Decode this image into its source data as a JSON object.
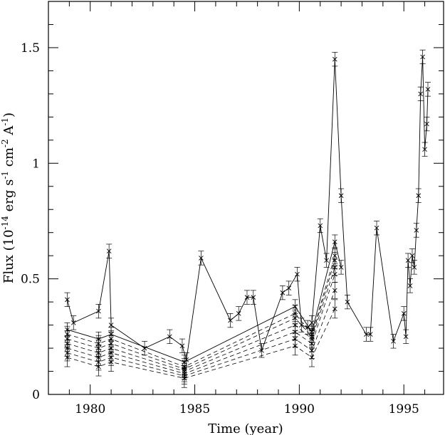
{
  "chart_data": {
    "type": "line",
    "title": "",
    "xlabel": "Time (year)",
    "ylabel": {
      "base": "Flux (10",
      "exp1": "-14",
      "mid1": " erg s",
      "exp2": "-1",
      "mid2": " cm",
      "exp3": "-2",
      "mid3": " A",
      "exp4": "-1",
      "end": ")"
    },
    "xlim": [
      1978,
      1996.9
    ],
    "ylim": [
      0,
      1.7
    ],
    "x_ticks": [
      {
        "value": 1980,
        "label": "1980"
      },
      {
        "value": 1985,
        "label": "1985"
      },
      {
        "value": 1990,
        "label": "1990"
      },
      {
        "value": 1995,
        "label": "1995"
      }
    ],
    "y_ticks": [
      {
        "value": 0,
        "label": "0"
      },
      {
        "value": 0.5,
        "label": "0.5"
      },
      {
        "value": 1,
        "label": "1"
      },
      {
        "value": 1.5,
        "label": "1.5"
      }
    ],
    "grid": false,
    "legend": "none",
    "marker": "x",
    "error_bars": true,
    "series": [
      {
        "style": "solid",
        "error": 0.03,
        "x": [
          1978.9,
          1979.2,
          1980.4,
          1980.9,
          1981.0,
          1982.6,
          1983.8,
          1984.4,
          1984.6,
          1985.3,
          1986.7,
          1987.1,
          1987.5,
          1987.8,
          1988.2,
          1989.2,
          1989.5,
          1989.9,
          1990.1,
          1990.4,
          1990.6,
          1991.0,
          1991.3,
          1991.7,
          1992.0,
          1992.3,
          1993.2,
          1993.4,
          1993.7,
          1994.5,
          1995.0,
          1995.1,
          1995.2,
          1995.3,
          1995.4,
          1995.5,
          1995.6,
          1995.7,
          1995.8,
          1995.9,
          1996.0,
          1996.1,
          1996.15
        ],
        "y": [
          0.41,
          0.31,
          0.36,
          0.62,
          0.3,
          0.2,
          0.25,
          0.21,
          0.15,
          0.59,
          0.32,
          0.35,
          0.42,
          0.42,
          0.19,
          0.44,
          0.46,
          0.52,
          0.3,
          0.29,
          0.31,
          0.73,
          0.58,
          1.45,
          0.86,
          0.4,
          0.26,
          0.26,
          0.72,
          0.23,
          0.35,
          0.25,
          0.58,
          0.47,
          0.6,
          0.55,
          0.71,
          0.86,
          1.3,
          1.46,
          1.06,
          1.17,
          1.32
        ]
      },
      {
        "style": "solid",
        "error": 0.03,
        "x": [
          1978.9,
          1980.4,
          1981.0,
          1984.5,
          1989.8,
          1990.6,
          1991.7,
          1992.0
        ],
        "y": [
          0.28,
          0.24,
          0.26,
          0.14,
          0.38,
          0.27,
          0.66,
          0.55
        ]
      },
      {
        "style": "dashed",
        "error": 0.035,
        "x": [
          1978.9,
          1980.4,
          1981.0,
          1984.5,
          1989.8,
          1990.6,
          1991.7
        ],
        "y": [
          0.26,
          0.22,
          0.24,
          0.12,
          0.35,
          0.26,
          0.6
        ]
      },
      {
        "style": "dashed",
        "error": 0.035,
        "x": [
          1978.9,
          1980.4,
          1981.0,
          1984.5,
          1989.8,
          1990.6,
          1991.7
        ],
        "y": [
          0.24,
          0.2,
          0.22,
          0.11,
          0.33,
          0.25,
          0.58
        ]
      },
      {
        "style": "dashed",
        "error": 0.035,
        "x": [
          1978.9,
          1980.4,
          1981.0,
          1984.5,
          1989.8,
          1990.6,
          1991.7
        ],
        "y": [
          0.22,
          0.18,
          0.2,
          0.1,
          0.3,
          0.24,
          0.55
        ]
      },
      {
        "style": "dashed",
        "error": 0.035,
        "x": [
          1978.9,
          1980.4,
          1981.0,
          1984.5,
          1989.8,
          1990.6,
          1991.7
        ],
        "y": [
          0.2,
          0.16,
          0.18,
          0.09,
          0.27,
          0.22,
          0.52
        ]
      },
      {
        "style": "dashed",
        "error": 0.035,
        "x": [
          1978.9,
          1980.4,
          1981.0,
          1984.5,
          1989.8,
          1990.6,
          1991.7
        ],
        "y": [
          0.18,
          0.14,
          0.16,
          0.08,
          0.24,
          0.19,
          0.45
        ]
      },
      {
        "style": "dashed",
        "error": 0.04,
        "x": [
          1978.9,
          1980.4,
          1981.0,
          1984.5,
          1989.8,
          1990.6,
          1991.7
        ],
        "y": [
          0.16,
          0.12,
          0.14,
          0.07,
          0.21,
          0.16,
          0.37
        ]
      }
    ]
  }
}
